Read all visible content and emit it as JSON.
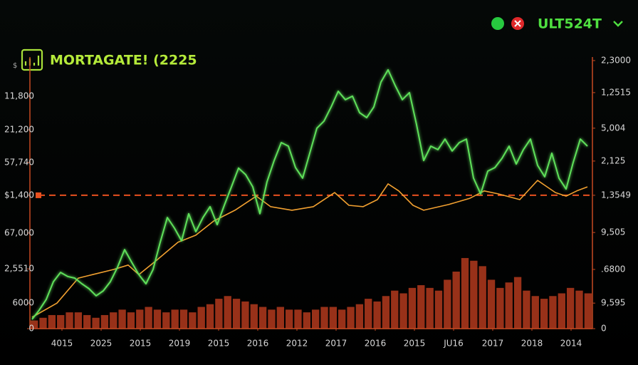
{
  "header": {
    "label": "ULT524T"
  },
  "chart_data": {
    "type": "line",
    "title": "MORTAGATE! (2225",
    "unit": "$",
    "xlim": [
      0,
      79
    ],
    "xticks": [
      {
        "value": 4.2,
        "label": "4015"
      },
      {
        "value": 9.7,
        "label": "2025"
      },
      {
        "value": 15.2,
        "label": "2015"
      },
      {
        "value": 20.7,
        "label": "2019"
      },
      {
        "value": 26.2,
        "label": "2015"
      },
      {
        "value": 31.7,
        "label": "2016"
      },
      {
        "value": 37.2,
        "label": "2012"
      },
      {
        "value": 42.7,
        "label": "2017"
      },
      {
        "value": 48.2,
        "label": "2016"
      },
      {
        "value": 53.7,
        "label": "2015"
      },
      {
        "value": 59.2,
        "label": "JU16"
      },
      {
        "value": 64.7,
        "label": "2017"
      },
      {
        "value": 70.2,
        "label": "2018"
      },
      {
        "value": 75.7,
        "label": "2014"
      }
    ],
    "ylim": [
      0,
      100
    ],
    "yticks": [
      {
        "value": 85.6,
        "label": "11,800"
      },
      {
        "value": 73.2,
        "label": "21,200"
      },
      {
        "value": 61.2,
        "label": "57,740"
      },
      {
        "value": 49.1,
        "label": "$1,400"
      },
      {
        "value": 35.2,
        "label": "67,000"
      },
      {
        "value": 22.0,
        "label": "2,5510"
      },
      {
        "value": 9.4,
        "label": "6000"
      },
      0
    ],
    "y2lim": [
      0,
      100
    ],
    "y2ticks": [
      {
        "value": 98.7,
        "label": "2,3000"
      },
      {
        "value": 86.9,
        "label": "1,2515"
      },
      {
        "value": 73.8,
        "label": "5,004"
      },
      {
        "value": 61.7,
        "label": "2,125"
      },
      {
        "value": 49.1,
        "label": "1,3549"
      },
      {
        "value": 35.4,
        "label": "9,505"
      },
      {
        "value": 21.8,
        "label": ".6800"
      },
      {
        "value": 9.4,
        "label": "9,595"
      },
      0
    ],
    "reference_line": {
      "value": 49.1,
      "color": "#e8501f"
    },
    "bars": {
      "color": "#a8361c",
      "values": [
        3,
        4,
        5,
        5,
        6,
        6,
        5,
        4,
        5,
        6,
        7,
        6,
        7,
        8,
        7,
        6,
        7,
        7,
        6,
        8,
        9,
        11,
        12,
        11,
        10,
        9,
        8,
        7,
        8,
        7,
        7,
        6,
        7,
        8,
        8,
        7,
        8,
        9,
        11,
        10,
        12,
        14,
        13,
        15,
        16,
        15,
        14,
        18,
        21,
        26,
        25,
        23,
        18,
        15,
        17,
        19,
        14,
        12,
        11,
        12,
        13,
        15,
        14,
        13
      ]
    },
    "series": [
      {
        "color": "#5fe05a",
        "x": [
          0,
          1,
          2,
          3,
          4,
          5,
          6,
          7,
          8,
          9,
          10,
          11,
          12,
          13,
          14,
          15,
          16,
          17,
          18,
          19,
          20,
          21,
          22,
          23,
          24,
          25,
          26,
          27,
          28,
          29,
          30,
          31,
          32,
          33,
          34,
          35,
          36,
          37,
          38,
          39,
          40,
          41,
          42,
          43,
          44,
          45,
          46,
          47,
          48,
          49,
          50,
          51,
          52,
          53,
          54,
          55,
          56,
          57,
          58,
          59,
          60,
          61,
          62,
          63,
          64,
          65,
          66,
          67,
          68,
          69,
          70,
          71,
          72,
          73,
          74,
          75,
          76,
          77,
          78
        ],
        "values": [
          3.4,
          6.8,
          10.8,
          17.3,
          20.7,
          19.2,
          18.6,
          16.5,
          14.7,
          12.1,
          13.9,
          17.3,
          22.6,
          29.1,
          24.4,
          19.9,
          16.5,
          21.8,
          31.8,
          40.9,
          37.0,
          32.3,
          42.3,
          35.7,
          40.9,
          44.9,
          38.3,
          45.4,
          52.2,
          59.1,
          56.7,
          52.2,
          42.3,
          54.1,
          61.9,
          68.5,
          67.2,
          59.3,
          55.4,
          64.6,
          73.8,
          76.4,
          81.6,
          87.4,
          84.3,
          85.6,
          79.5,
          77.7,
          81.6,
          90.8,
          95.3,
          89.5,
          84.3,
          86.9,
          75.1,
          61.9,
          67.2,
          65.9,
          69.8,
          65.4,
          68.5,
          69.8,
          55.4,
          49.6,
          58.0,
          59.3,
          62.7,
          67.2,
          60.6,
          65.9,
          69.8,
          60.1,
          55.9,
          64.6,
          55.4,
          51.4,
          61.2,
          69.8,
          67.2
        ]
      },
      {
        "color": "#f0a030",
        "x": [
          0,
          3.5,
          6.5,
          8.5,
          11.5,
          13.5,
          15,
          17.5,
          20.5,
          23,
          25.5,
          28.5,
          31.5,
          33.5,
          36.5,
          39.5,
          42.5,
          44.5,
          46.5,
          48.5,
          50,
          51.5,
          53.5,
          55,
          58.5,
          61.5,
          63.5,
          65.5,
          68.5,
          71,
          73.5,
          75,
          76.5,
          78
        ],
        "values": [
          4.2,
          9.4,
          18.6,
          19.9,
          21.8,
          23.4,
          19.9,
          25.2,
          31.8,
          34.4,
          39.6,
          43.6,
          48.8,
          44.9,
          43.6,
          44.9,
          50.1,
          45.4,
          44.9,
          47.5,
          53.3,
          50.7,
          45.4,
          43.6,
          45.7,
          48.0,
          50.7,
          49.6,
          47.5,
          54.6,
          50.1,
          48.8,
          50.7,
          52.2
        ]
      }
    ]
  }
}
